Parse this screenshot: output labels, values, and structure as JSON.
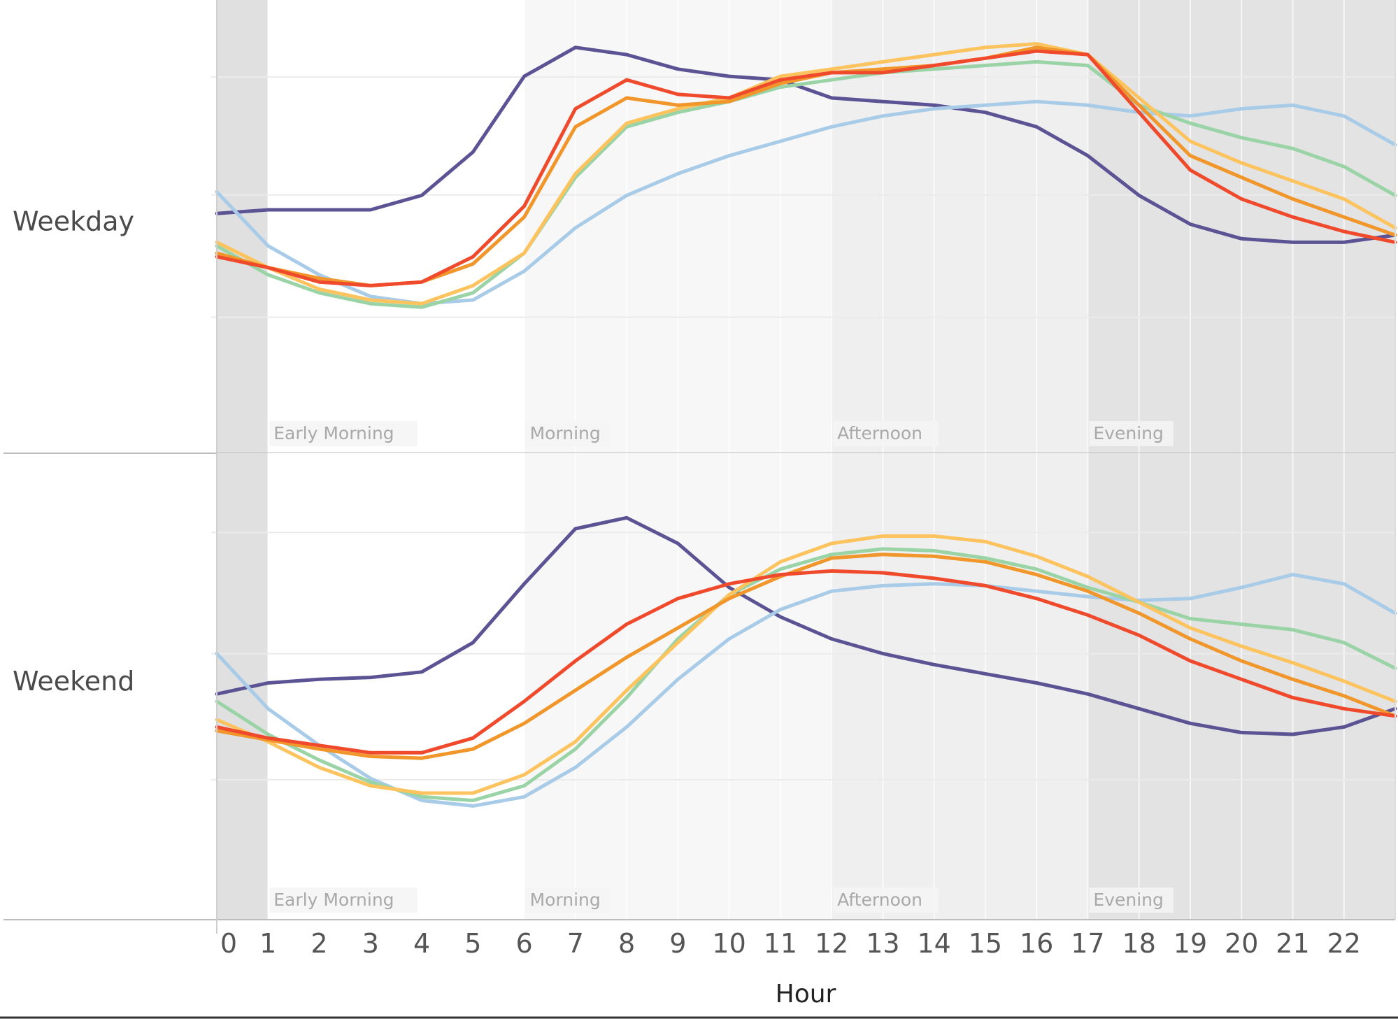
{
  "chart_data": {
    "type": "line",
    "xlabel": "Hour",
    "x": [
      0,
      1,
      2,
      3,
      4,
      5,
      6,
      7,
      8,
      9,
      10,
      11,
      12,
      13,
      14,
      15,
      16,
      17,
      18,
      19,
      20,
      21,
      22,
      23
    ],
    "x_tick_labels": [
      "0",
      "1",
      "2",
      "3",
      "4",
      "5",
      "6",
      "7",
      "8",
      "9",
      "10",
      "11",
      "12",
      "13",
      "14",
      "15",
      "16",
      "17",
      "18",
      "19",
      "20",
      "21",
      "22"
    ],
    "xlim": [
      0,
      23
    ],
    "ylim": [
      0,
      100
    ],
    "grid": true,
    "legend": "none",
    "periods": [
      {
        "label": "",
        "start": 0,
        "end": 1,
        "color": "#e0e0e0"
      },
      {
        "label": "Early Morning",
        "start": 1,
        "end": 6,
        "color": "#ffffff"
      },
      {
        "label": "Morning",
        "start": 6,
        "end": 12,
        "color": "#f7f7f7"
      },
      {
        "label": "Afternoon",
        "start": 12,
        "end": 17,
        "color": "#efefef"
      },
      {
        "label": "Evening",
        "start": 17,
        "end": 23,
        "color": "#e3e3e3"
      }
    ],
    "panels": [
      {
        "label": "Weekday",
        "series": [
          {
            "color": "#5b5394",
            "values": [
              49,
              50,
              50,
              50,
              54,
              66,
              87,
              95,
              93,
              89,
              87,
              86,
              81,
              80,
              79,
              77,
              73,
              65,
              54,
              46,
              42,
              41,
              41,
              43
            ]
          },
          {
            "color": "#a8cbe8",
            "values": [
              55,
              40,
              32,
              26,
              24,
              25,
              33,
              45,
              54,
              60,
              65,
              69,
              73,
              76,
              78,
              79,
              80,
              79,
              77,
              76,
              78,
              79,
              76,
              68
            ]
          },
          {
            "color": "#9ad4a6",
            "values": [
              40,
              32,
              27,
              24,
              23,
              27,
              38,
              59,
              73,
              77,
              80,
              84,
              86,
              88,
              89,
              90,
              91,
              90,
              79,
              74,
              70,
              67,
              62,
              54
            ]
          },
          {
            "color": "#fcc35e",
            "values": [
              41,
              34,
              28,
              25,
              24,
              29,
              38,
              60,
              74,
              78,
              81,
              87,
              89,
              91,
              93,
              95,
              96,
              93,
              81,
              69,
              63,
              58,
              53,
              45
            ]
          },
          {
            "color": "#f0962b",
            "values": [
              38,
              34,
              31,
              29,
              30,
              35,
              48,
              73,
              81,
              79,
              80,
              85,
              88,
              89,
              90,
              92,
              95,
              93,
              79,
              65,
              59,
              53,
              48,
              43
            ]
          },
          {
            "color": "#f04a2d",
            "values": [
              37,
              34,
              30,
              29,
              30,
              37,
              51,
              78,
              86,
              82,
              81,
              86,
              88,
              88,
              90,
              92,
              94,
              93,
              77,
              61,
              53,
              48,
              44,
              41
            ]
          }
        ]
      },
      {
        "label": "Weekend",
        "series": [
          {
            "color": "#5b5394",
            "values": [
              43,
              46,
              47,
              47.5,
              49,
              57,
              73,
              88,
              91,
              84,
              72,
              64,
              58,
              54,
              51,
              48.5,
              46,
              43,
              39,
              35,
              32.5,
              32,
              34,
              39
            ]
          },
          {
            "color": "#a8cbe8",
            "values": [
              54,
              39,
              29,
              20,
              14,
              12.5,
              15,
              23,
              34,
              47,
              58,
              66,
              71,
              72.5,
              73,
              72.5,
              71,
              69.5,
              68.5,
              69,
              72,
              75.5,
              73,
              65
            ]
          },
          {
            "color": "#9ad4a6",
            "values": [
              41,
              32,
              25,
              19,
              15,
              14,
              18,
              28,
              42,
              58,
              70,
              77,
              81,
              82.5,
              82,
              80,
              77,
              72,
              68,
              63.5,
              62,
              60.5,
              57,
              50
            ]
          },
          {
            "color": "#fcc35e",
            "values": [
              36,
              30,
              23,
              18,
              16,
              16,
              21,
              30,
              44,
              57,
              70,
              79,
              84,
              86,
              86,
              84.5,
              80.5,
              75,
              68,
              61,
              56,
              51.5,
              46.5,
              41
            ]
          },
          {
            "color": "#f0962b",
            "values": [
              33,
              30.5,
              28,
              26,
              25.5,
              28,
              35,
              44,
              53,
              61,
              69,
              75,
              80,
              81,
              80.5,
              79,
              75.5,
              71,
              65,
              58,
              52,
              47,
              42.5,
              37
            ]
          },
          {
            "color": "#f04a2d",
            "values": [
              34,
              31,
              29,
              27,
              27,
              31,
              41,
              52,
              62,
              69,
              73,
              75.5,
              76.5,
              76,
              74.5,
              72.5,
              69,
              64.5,
              59,
              52,
              47,
              42,
              39,
              37
            ]
          }
        ]
      }
    ]
  }
}
